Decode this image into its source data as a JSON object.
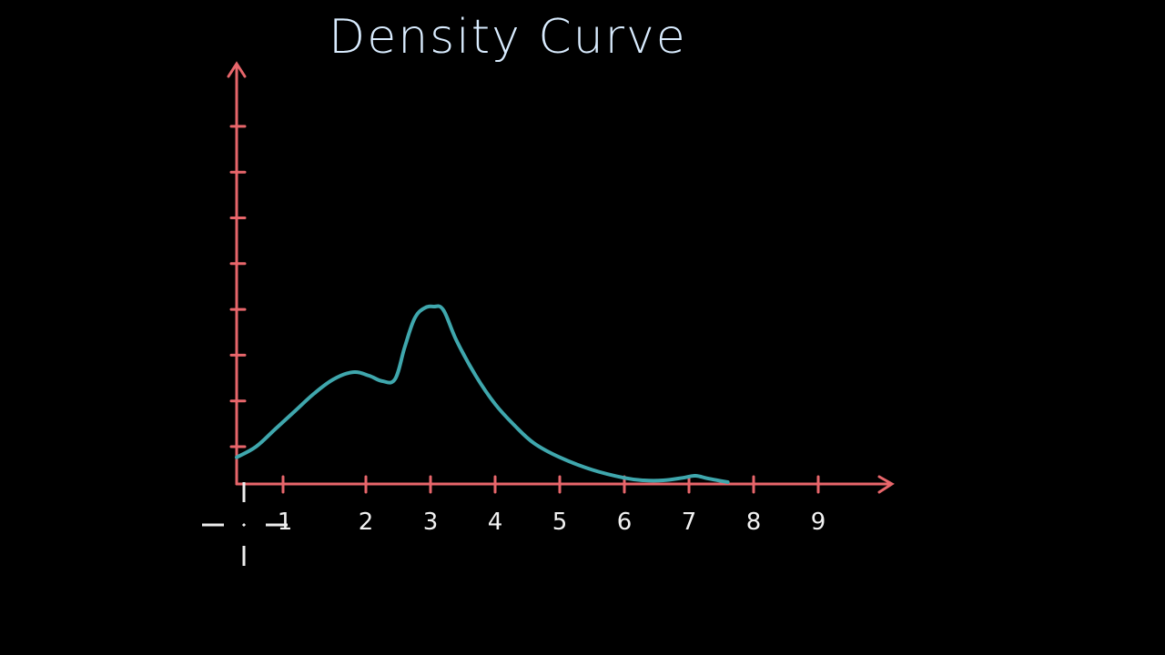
{
  "chart_data": {
    "type": "line",
    "title": "Density Curve",
    "x_tick_labels": [
      "1",
      "2",
      "3",
      "4",
      "5",
      "6",
      "7",
      "8",
      "9"
    ],
    "x_ticks": [
      1,
      2,
      3,
      4,
      5,
      6,
      7,
      8,
      9
    ],
    "y_tick_count": 8,
    "xlim": [
      0,
      10
    ],
    "series": [
      {
        "values_x": [
          0,
          0.3,
          0.6,
          0.9,
          1.2,
          1.5,
          1.8,
          2.05,
          2.25,
          2.45,
          2.6,
          2.75,
          2.9,
          3.05,
          3.2,
          3.4,
          3.7,
          4.0,
          4.3,
          4.6,
          5.0,
          5.5,
          6.0,
          6.3,
          6.6,
          6.9,
          7.1,
          7.3,
          7.6
        ],
        "values_y": [
          0.7,
          1.0,
          1.5,
          2.0,
          2.5,
          2.9,
          3.1,
          3.0,
          2.85,
          2.9,
          3.8,
          4.6,
          4.9,
          4.95,
          4.85,
          4.0,
          3.0,
          2.2,
          1.6,
          1.1,
          0.7,
          0.35,
          0.12,
          0.05,
          0.05,
          0.12,
          0.18,
          0.1,
          0.0
        ]
      }
    ],
    "colors": {
      "axis": "#e8666b",
      "curve": "#3fa7ad",
      "title": "#d9ecff",
      "labels": "#f2f2f2",
      "background": "#000000"
    }
  }
}
